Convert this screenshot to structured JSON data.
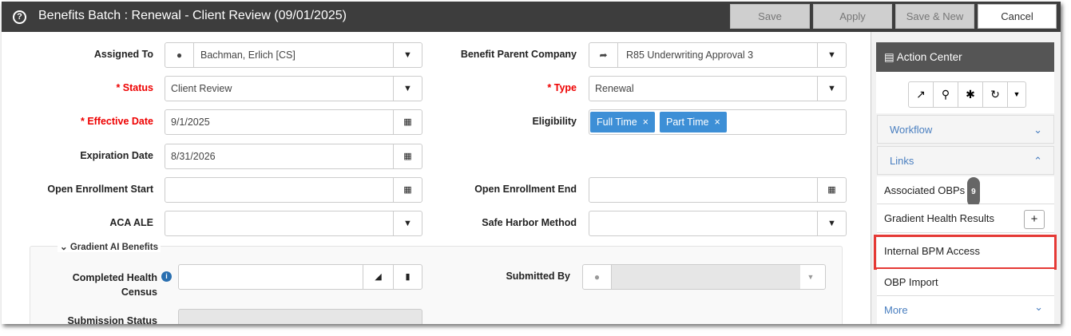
{
  "header": {
    "title": "Benefits Batch : Renewal - Client Review (09/01/2025)",
    "buttons": {
      "save": "Save",
      "apply": "Apply",
      "save_new": "Save & New",
      "cancel": "Cancel"
    }
  },
  "form": {
    "assigned_to": {
      "label": "Assigned To",
      "value": "Bachman, Erlich [CS]"
    },
    "benefit_parent_company": {
      "label": "Benefit Parent Company",
      "value": "R85 Underwriting Approval 3"
    },
    "status": {
      "label": "* Status",
      "value": "Client Review"
    },
    "type": {
      "label": "* Type",
      "value": "Renewal"
    },
    "effective_date": {
      "label": "* Effective Date",
      "value": "9/1/2025"
    },
    "eligibility": {
      "label": "Eligibility",
      "tags": [
        "Full Time",
        "Part Time"
      ]
    },
    "expiration_date": {
      "label": "Expiration Date",
      "value": "8/31/2026"
    },
    "open_enrollment_start": {
      "label": "Open Enrollment Start",
      "value": ""
    },
    "open_enrollment_end": {
      "label": "Open Enrollment End",
      "value": ""
    },
    "aca_ale": {
      "label": "ACA ALE",
      "value": ""
    },
    "safe_harbor": {
      "label": "Safe Harbor Method",
      "value": ""
    }
  },
  "gradient": {
    "legend": "Gradient AI Benefits",
    "completed_census_1": "Completed Health",
    "completed_census_2": "Census",
    "submitted_by": "Submitted By",
    "submission_status": "Submission Status"
  },
  "sidebar": {
    "title": "Action Center",
    "workflow": "Workflow",
    "links": "Links",
    "items": [
      {
        "label": "Associated OBPs",
        "badge": "9"
      },
      {
        "label": "Gradient Health Results"
      },
      {
        "label": "Internal BPM Access"
      },
      {
        "label": "OBP Import"
      }
    ],
    "more": "More",
    "highlight_color": "#e53935"
  }
}
